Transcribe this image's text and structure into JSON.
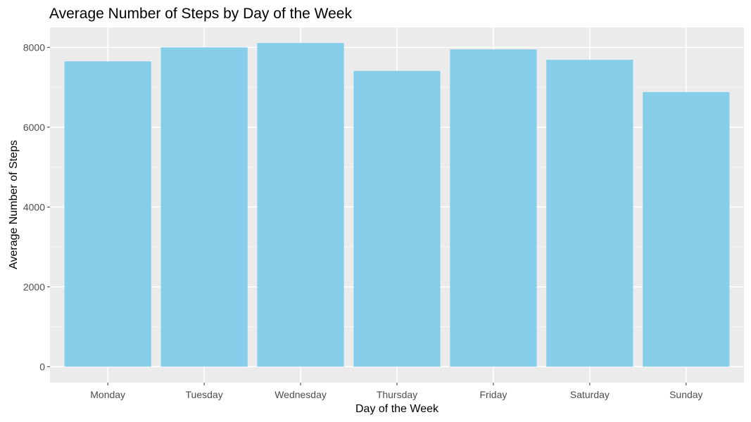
{
  "chart_data": {
    "type": "bar",
    "title": "Average Number of Steps by Day of the Week",
    "xlabel": "Day of the Week",
    "ylabel": "Average Number of Steps",
    "categories": [
      "Monday",
      "Tuesday",
      "Wednesday",
      "Thursday",
      "Friday",
      "Saturday",
      "Sunday"
    ],
    "values": [
      7650,
      8000,
      8110,
      7410,
      7950,
      7690,
      6880
    ],
    "ylim": [
      -400,
      8500
    ],
    "yticks": [
      0,
      2000,
      4000,
      6000,
      8000
    ],
    "ytick_labels": [
      "0",
      "2000",
      "4000",
      "6000",
      "8000"
    ],
    "grid": true,
    "legend": "none",
    "colors": {
      "bar": "#87CEEB",
      "panel_background": "#EBEBEB",
      "grid_major": "#FFFFFF",
      "grid_minor": "#F5F5F5"
    }
  }
}
